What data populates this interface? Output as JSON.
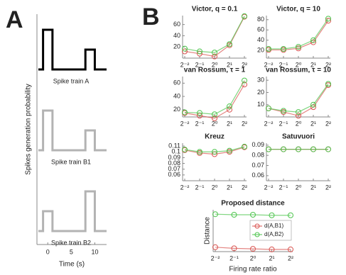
{
  "panel_labels": [
    "A",
    "B"
  ],
  "chart_data": [
    {
      "type": "step",
      "ylabel": "Spikes generation probability",
      "xlabel": "Time (s)",
      "x": [
        -2,
        -1,
        -1,
        1,
        1,
        8,
        8,
        10,
        10,
        12.5
      ],
      "xlim": [
        -2.3,
        12.5
      ],
      "xticks": [
        0,
        5,
        10
      ],
      "ylim": [
        0,
        1
      ],
      "series": [
        {
          "name": "Spike train A",
          "color": "#000000",
          "values": [
            0,
            0,
            1,
            1,
            0,
            0,
            0.5,
            0.5,
            0,
            0
          ]
        },
        {
          "name": "Spike train B1",
          "color": "#b3b3b3",
          "values": [
            0,
            0,
            1,
            1,
            0,
            0,
            0.5,
            0.5,
            0,
            0
          ]
        },
        {
          "name": "Spike train B2",
          "color": "#b3b3b3",
          "values": [
            0,
            0,
            0.5,
            0.5,
            0,
            0,
            1,
            1,
            0,
            0
          ]
        }
      ]
    },
    {
      "type": "line",
      "title": "Victor, q = 0.1",
      "categories": [
        "2⁻²",
        "2⁻¹",
        "2⁰",
        "2¹",
        "2²"
      ],
      "ylim": [
        0,
        76
      ],
      "yticks": [
        20,
        40,
        60
      ],
      "series": [
        {
          "color": "#d9534f",
          "values": [
            12,
            8,
            3,
            23,
            74
          ]
        },
        {
          "color": "#4cc44c",
          "values": [
            17,
            12,
            10,
            25,
            75
          ]
        }
      ]
    },
    {
      "type": "line",
      "title": "Victor, q = 10",
      "categories": [
        "2⁻²",
        "2⁻¹",
        "2⁰",
        "2¹",
        "2²"
      ],
      "ylim": [
        5,
        88
      ],
      "yticks": [
        20,
        40,
        60,
        80
      ],
      "series": [
        {
          "color": "#d9534f",
          "values": [
            21,
            21,
            24,
            36,
            78
          ]
        },
        {
          "color": "#4cc44c",
          "values": [
            23,
            23,
            27,
            40,
            82
          ]
        }
      ]
    },
    {
      "type": "line",
      "title": "van Rossum,  τ = 1",
      "categories": [
        "2⁻²",
        "2⁻¹",
        "2⁰",
        "2¹",
        "2²"
      ],
      "ylim": [
        9,
        70
      ],
      "yticks": [
        20,
        40,
        60
      ],
      "series": [
        {
          "color": "#d9534f",
          "values": [
            15,
            11,
            7,
            20,
            58
          ]
        },
        {
          "color": "#4cc44c",
          "values": [
            16,
            15,
            13,
            25,
            64
          ]
        }
      ]
    },
    {
      "type": "line",
      "title": "van Rossum,  τ = 10",
      "categories": [
        "2⁻²",
        "2⁻¹",
        "2⁰",
        "2¹",
        "2²"
      ],
      "ylim": [
        0,
        33
      ],
      "yticks": [
        10,
        20,
        30
      ],
      "series": [
        {
          "color": "#d9534f",
          "values": [
            7,
            4,
            1,
            8,
            26
          ]
        },
        {
          "color": "#4cc44c",
          "values": [
            7,
            5,
            4,
            10,
            27
          ]
        }
      ]
    },
    {
      "type": "line",
      "title": "Kreuz",
      "categories": [
        "2⁻²",
        "2⁻¹",
        "2⁰",
        "2¹",
        "2²"
      ],
      "ylim": [
        0.05,
        0.115
      ],
      "yticks": [
        0.06,
        0.07,
        0.08,
        0.09,
        0.1,
        0.11
      ],
      "series": [
        {
          "color": "#d9534f",
          "values": [
            0.103,
            0.098,
            0.096,
            0.1,
            0.108
          ]
        },
        {
          "color": "#4cc44c",
          "values": [
            0.104,
            0.1,
            0.1,
            0.102,
            0.109
          ]
        }
      ]
    },
    {
      "type": "line",
      "title": "Satuvuori",
      "categories": [
        "2⁻²",
        "2⁻¹",
        "2⁰",
        "2¹",
        "2²"
      ],
      "ylim": [
        0.055,
        0.092
      ],
      "yticks": [
        0.06,
        0.07,
        0.08,
        0.09
      ],
      "series": [
        {
          "color": "#d9534f",
          "values": [
            0.086,
            0.086,
            0.086,
            0.086,
            0.086
          ]
        },
        {
          "color": "#4cc44c",
          "values": [
            0.086,
            0.086,
            0.086,
            0.086,
            0.086
          ]
        }
      ]
    },
    {
      "type": "line",
      "title": "Proposed distance",
      "xlabel": "Firing rate ratio",
      "ylabel": "Distance",
      "legend": "lower right",
      "categories": [
        "2⁻²",
        "2⁻¹",
        "2⁰",
        "2¹",
        "2²"
      ],
      "ylim": [
        0,
        3.8
      ],
      "series": [
        {
          "name": "d(A,B1)",
          "color": "#d9534f",
          "values": [
            0.4,
            0.3,
            0.25,
            0.2,
            0.2
          ]
        },
        {
          "name": "d(A,B2)",
          "color": "#4cc44c",
          "values": [
            3.4,
            3.35,
            3.35,
            3.3,
            3.3
          ]
        }
      ]
    }
  ]
}
